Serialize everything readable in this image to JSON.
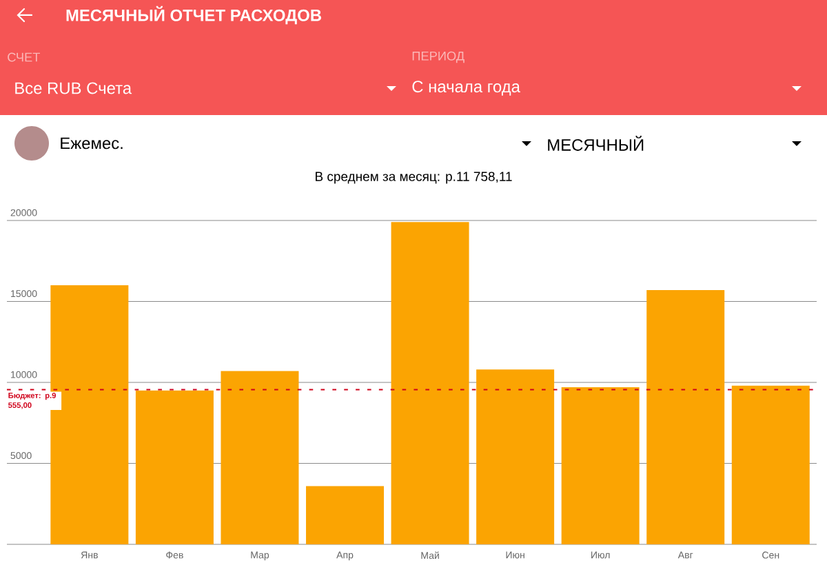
{
  "chart_data": {
    "type": "bar",
    "title": "МЕСЯЧНЫЙ ОТЧЕТ РАСХОДОВ",
    "subtitle": "В среднем за месяц: р.11 758,11",
    "annotations": [
      "СЧЕТ",
      "Все RUB Счета",
      "ПЕРИОД",
      "С начала года",
      "Ежемес.",
      "МЕСЯЧНЫЙ"
    ],
    "categories": [
      "Янв",
      "Фев",
      "Мар",
      "Апр",
      "Май",
      "Июн",
      "Июл",
      "Авг",
      "Сен"
    ],
    "values": [
      16000,
      9500,
      10700,
      3600,
      19900,
      10800,
      9700,
      15700,
      9800
    ],
    "color": "#fba402",
    "ylim": [
      0,
      20000
    ],
    "yticks": [
      5000,
      10000,
      15000,
      20000
    ],
    "grid": "y",
    "ref_lines": [
      {
        "axis": "y",
        "value": 9555,
        "label": "Бюджет: р.9 555,00",
        "color": "#d0021b",
        "line_style": "dashed"
      }
    ]
  }
}
